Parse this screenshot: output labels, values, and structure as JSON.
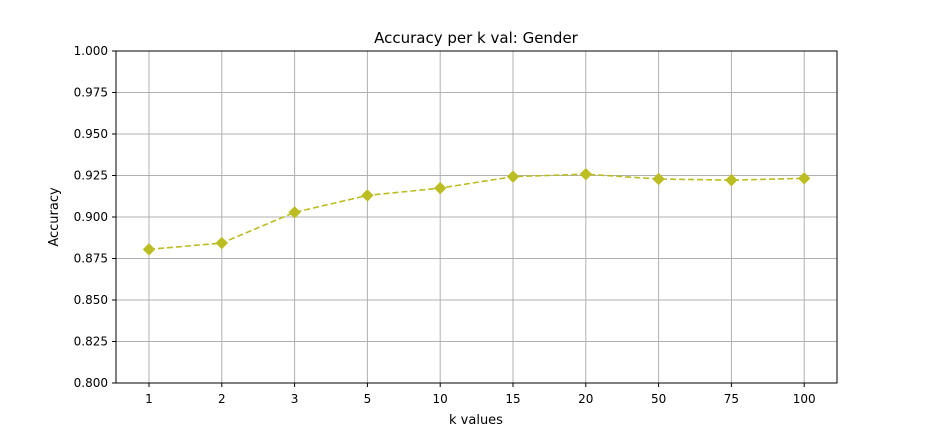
{
  "chart_data": {
    "type": "line",
    "title": "Accuracy per k val: Gender",
    "xlabel": "k values",
    "ylabel": "Accuracy",
    "categories": [
      "1",
      "2",
      "3",
      "5",
      "10",
      "15",
      "20",
      "50",
      "75",
      "100"
    ],
    "series": [
      {
        "values": [
          0.8805,
          0.8843,
          0.9028,
          0.913,
          0.9174,
          0.9243,
          0.9258,
          0.9229,
          0.9222,
          0.9233
        ],
        "color": "#bcbd22",
        "line_style": "dashed",
        "marker": "diamond"
      }
    ],
    "ylim": [
      0.8,
      1.0
    ],
    "yticks": [
      "0.800",
      "0.825",
      "0.850",
      "0.875",
      "0.900",
      "0.925",
      "0.950",
      "0.975",
      "1.000"
    ],
    "grid": true
  }
}
